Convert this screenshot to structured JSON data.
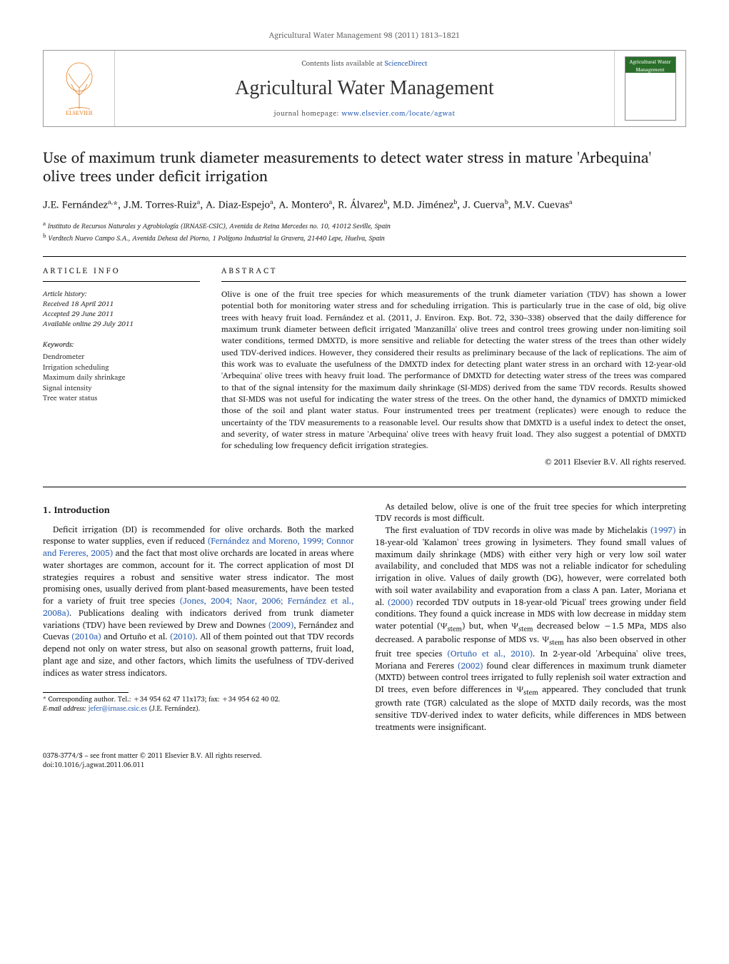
{
  "header_citation": "Agricultural Water Management 98 (2011) 1813–1821",
  "masthead": {
    "contents_prefix": "Contents lists available at ",
    "contents_link": "ScienceDirect",
    "journal_title": "Agricultural Water Management",
    "homepage_prefix": "journal homepage: ",
    "homepage_url": "www.elsevier.com/locate/agwat",
    "publisher_logo_text": "ELSEVIER",
    "cover_text": "Agricultural Water Management"
  },
  "article": {
    "title": "Use of maximum trunk diameter measurements to detect water stress in mature 'Arbequina' olive trees under deficit irrigation",
    "authors_html": "J.E. Fernández<sup>a,</sup>*, J.M. Torres-Ruiz<sup>a</sup>, A. Diaz-Espejo<sup>a</sup>, A. Montero<sup>a</sup>, R. Álvarez<sup>b</sup>, M.D. Jiménez<sup>b</sup>, J. Cuerva<sup>b</sup>, M.V. Cuevas<sup>a</sup>",
    "affiliations": {
      "a": "Instituto de Recursos Naturales y Agrobiología (IRNASE-CSIC), Avenida de Reina Mercedes no. 10, 41012 Seville, Spain",
      "b": "Verdtech Nuevo Campo S.A., Avenida Dehesa del Piorno, 1 Polígono Industrial la Gravera, 21440 Lepe, Huelva, Spain"
    }
  },
  "info": {
    "section_label": "article info",
    "history_label": "Article history:",
    "received": "Received 18 April 2011",
    "accepted": "Accepted 29 June 2011",
    "online": "Available online 29 July 2011",
    "keywords_label": "Keywords:",
    "keywords": [
      "Dendrometer",
      "Irrigation scheduling",
      "Maximum daily shrinkage",
      "Signal intensity",
      "Tree water status"
    ]
  },
  "abstract": {
    "section_label": "abstract",
    "text": "Olive is one of the fruit tree species for which measurements of the trunk diameter variation (TDV) has shown a lower potential both for monitoring water stress and for scheduling irrigation. This is particularly true in the case of old, big olive trees with heavy fruit load. Fernández et al. (2011, J. Environ. Exp. Bot. 72, 330–338) observed that the daily difference for maximum trunk diameter between deficit irrigated 'Manzanilla' olive trees and control trees growing under non-limiting soil water conditions, termed DMXTD, is more sensitive and reliable for detecting the water stress of the trees than other widely used TDV-derived indices. However, they considered their results as preliminary because of the lack of replications. The aim of this work was to evaluate the usefulness of the DMXTD index for detecting plant water stress in an orchard with 12-year-old 'Arbequina' olive trees with heavy fruit load. The performance of DMXTD for detecting water stress of the trees was compared to that of the signal intensity for the maximum daily shrinkage (SI-MDS) derived from the same TDV records. Results showed that SI-MDS was not useful for indicating the water stress of the trees. On the other hand, the dynamics of DMXTD mimicked those of the soil and plant water status. Four instrumented trees per treatment (replicates) were enough to reduce the uncertainty of the TDV measurements to a reasonable level. Our results show that DMXTD is a useful index to detect the onset, and severity, of water stress in mature 'Arbequina' olive trees with heavy fruit load. They also suggest a potential of DMXTD for scheduling low frequency deficit irrigation strategies.",
    "copyright": "© 2011 Elsevier B.V. All rights reserved."
  },
  "body": {
    "heading": "1. Introduction",
    "col1_paras": [
      "Deficit irrigation (DI) is recommended for olive orchards. Both the marked response to water supplies, even if reduced (Fernández and Moreno, 1999; Connor and Fereres, 2005) and the fact that most olive orchards are located in areas where water shortages are common, account for it. The correct application of most DI strategies requires a robust and sensitive water stress indicator. The most promising ones, usually derived from plant-based measurements, have been tested for a variety of fruit tree species (Jones, 2004; Naor, 2006; Fernández et al., 2008a). Publications dealing with indicators derived from trunk diameter variations (TDV) have been reviewed by Drew and Downes (2009), Fernández and Cuevas (2010a) and Ortuño et al. (2010). All of them pointed out that TDV records depend not only on water stress, but also on seasonal growth patterns, fruit load, plant age and size, and other factors, which limits the usefulness of TDV-derived indices as water stress indicators."
    ],
    "col2_paras": [
      "As detailed below, olive is one of the fruit tree species for which interpreting TDV records is most difficult.",
      "The first evaluation of TDV records in olive was made by Michelakis (1997) in 18-year-old 'Kalamon' trees growing in lysimeters. They found small values of maximum daily shrinkage (MDS) with either very high or very low soil water availability, and concluded that MDS was not a reliable indicator for scheduling irrigation in olive. Values of daily growth (DG), however, were correlated both with soil water availability and evaporation from a class A pan. Later, Moriana et al. (2000) recorded TDV outputs in 18-year-old 'Picual' trees growing under field conditions. They found a quick increase in MDS with low decrease in midday stem water potential (Ψstem) but, when Ψstem decreased below −1.5 MPa, MDS also decreased. A parabolic response of MDS vs. Ψstem has also been observed in other fruit tree species (Ortuño et al., 2010). In 2-year-old 'Arbequina' olive trees, Moriana and Fereres (2002) found clear differences in maximum trunk diameter (MXTD) between control trees irrigated to fully replenish soil water extraction and DI trees, even before differences in Ψstem appeared. They concluded that trunk growth rate (TGR) calculated as the slope of MXTD daily records, was the most sensitive TDV-derived index to water deficits, while differences in MDS between treatments were insignificant."
    ]
  },
  "footnote": {
    "corr_label": "* Corresponding author. Tel.: +34 954 62 47 11x173; fax: +34 954 62 40 02.",
    "email_label": "E-mail address:",
    "email": "jefer@irnase.csic.es",
    "email_author": "(J.E. Fernández)."
  },
  "footer": {
    "line1": "0378-3774/$ – see front matter © 2011 Elsevier B.V. All rights reserved.",
    "line2": "doi:10.1016/j.agwat.2011.06.011"
  },
  "colors": {
    "link": "#2a5db0",
    "text": "#1a1a1a",
    "muted": "#666",
    "rule": "#000",
    "elsevier_orange": "#e67a17"
  }
}
